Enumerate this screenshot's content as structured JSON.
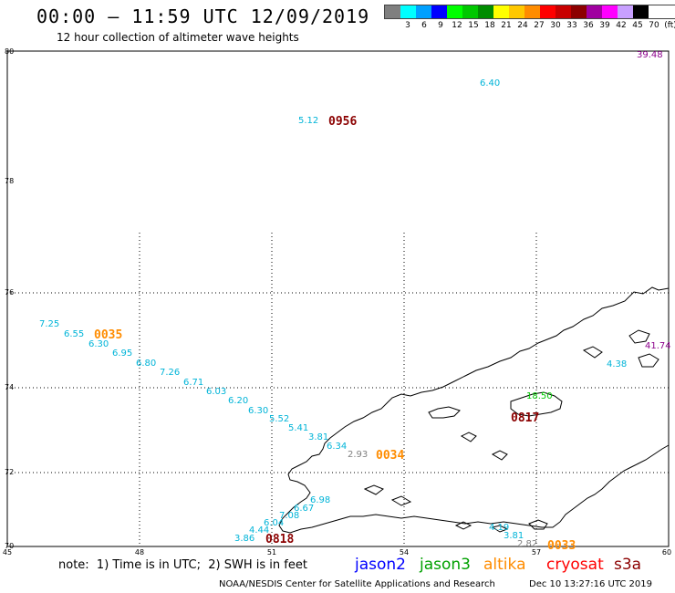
{
  "header": {
    "title": "00:00 – 11:59 UTC 12/09/2019",
    "subtitle": "12 hour collection of altimeter wave heights"
  },
  "colorbar": {
    "colors": [
      "#7f7f7f",
      "#00ffff",
      "#00a0ff",
      "#0000ff",
      "#00ff00",
      "#00c800",
      "#008c00",
      "#ffff00",
      "#ffc800",
      "#ff8c00",
      "#ff0000",
      "#c80000",
      "#8c0000",
      "#a000a0",
      "#ff00ff",
      "#c8a0ff",
      "#000000"
    ],
    "labels": [
      "3",
      "6",
      "9",
      "12",
      "15",
      "18",
      "21",
      "24",
      "27",
      "30",
      "33",
      "36",
      "39",
      "42",
      "45",
      "70",
      "(ft)"
    ]
  },
  "axes": {
    "lat_labels": [
      "80",
      "78",
      "76",
      "74",
      "72",
      "70"
    ],
    "lon_labels": [
      "45",
      "48",
      "51",
      "54",
      "57",
      "60"
    ]
  },
  "observations": [
    {
      "text": "39.48",
      "color": "#8b008b"
    },
    {
      "text": "6.40",
      "color": "#00b4d8"
    },
    {
      "text": "5.12",
      "color": "#00b4d8"
    },
    {
      "text": "7.25",
      "color": "#00b4d8"
    },
    {
      "text": "6.55",
      "color": "#00b4d8"
    },
    {
      "text": "6.30",
      "color": "#00b4d8"
    },
    {
      "text": "6.95",
      "color": "#00b4d8"
    },
    {
      "text": "6.80",
      "color": "#00b4d8"
    },
    {
      "text": "7.26",
      "color": "#00b4d8"
    },
    {
      "text": "6.71",
      "color": "#00b4d8"
    },
    {
      "text": "6.03",
      "color": "#00b4d8"
    },
    {
      "text": "6.20",
      "color": "#00b4d8"
    },
    {
      "text": "6.30",
      "color": "#00b4d8"
    },
    {
      "text": "5.52",
      "color": "#00b4d8"
    },
    {
      "text": "5.41",
      "color": "#00b4d8"
    },
    {
      "text": "3.81",
      "color": "#00b4d8"
    },
    {
      "text": "6.34",
      "color": "#00b4d8"
    },
    {
      "text": "2.93",
      "color": "#808080"
    },
    {
      "text": "6.98",
      "color": "#00b4d8"
    },
    {
      "text": "6.67",
      "color": "#00b4d8"
    },
    {
      "text": "7.08",
      "color": "#00b4d8"
    },
    {
      "text": "6.04",
      "color": "#00b4d8"
    },
    {
      "text": "4.44",
      "color": "#00b4d8"
    },
    {
      "text": "3.86",
      "color": "#00b4d8"
    },
    {
      "text": "41.74",
      "color": "#8b008b"
    },
    {
      "text": "4.38",
      "color": "#00b4d8"
    },
    {
      "text": "18.50",
      "color": "#00c800"
    },
    {
      "text": "4.19",
      "color": "#00b4d8"
    },
    {
      "text": "3.81",
      "color": "#00b4d8"
    },
    {
      "text": "2.82",
      "color": "#808080"
    }
  ],
  "times": [
    {
      "text": "0956",
      "color": "#8b0000"
    },
    {
      "text": "0035",
      "color": "#ff8c00"
    },
    {
      "text": "0034",
      "color": "#ff8c00"
    },
    {
      "text": "0817",
      "color": "#8b0000"
    },
    {
      "text": "0818",
      "color": "#8b0000"
    },
    {
      "text": "0033",
      "color": "#ff8c00"
    }
  ],
  "footer": {
    "note": "note:  1) Time is in UTC;  2) SWH is in feet",
    "legend": [
      {
        "label": "jason2",
        "color": "#0000ff"
      },
      {
        "label": "jason3",
        "color": "#00a000"
      },
      {
        "label": "altika",
        "color": "#ff8c00"
      },
      {
        "label": "cryosat",
        "color": "#ff0000"
      },
      {
        "label": "s3a",
        "color": "#8b0000"
      }
    ],
    "credit": "NOAA/NESDIS Center for Satellite Applications and Research",
    "timestamp": "Dec 10 13:27:16 UTC 2019"
  }
}
